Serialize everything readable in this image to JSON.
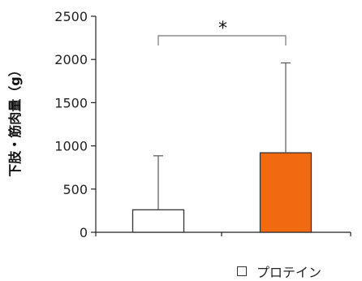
{
  "chart_data": {
    "type": "bar",
    "ylabel": "下肢・筋肉量（g）",
    "ylim": [
      0,
      2500
    ],
    "yticks": [
      0,
      500,
      1000,
      1500,
      2000,
      2500
    ],
    "grid": false,
    "bars": [
      {
        "value": 260,
        "error_upper": 885,
        "color": "#ffffff"
      },
      {
        "value": 920,
        "error_upper": 1960,
        "color": "#f26a10"
      }
    ],
    "annotation": "*",
    "legend": {
      "label": "プロテイン",
      "swatch": "#ffffff",
      "placement": "bottom-right"
    }
  }
}
